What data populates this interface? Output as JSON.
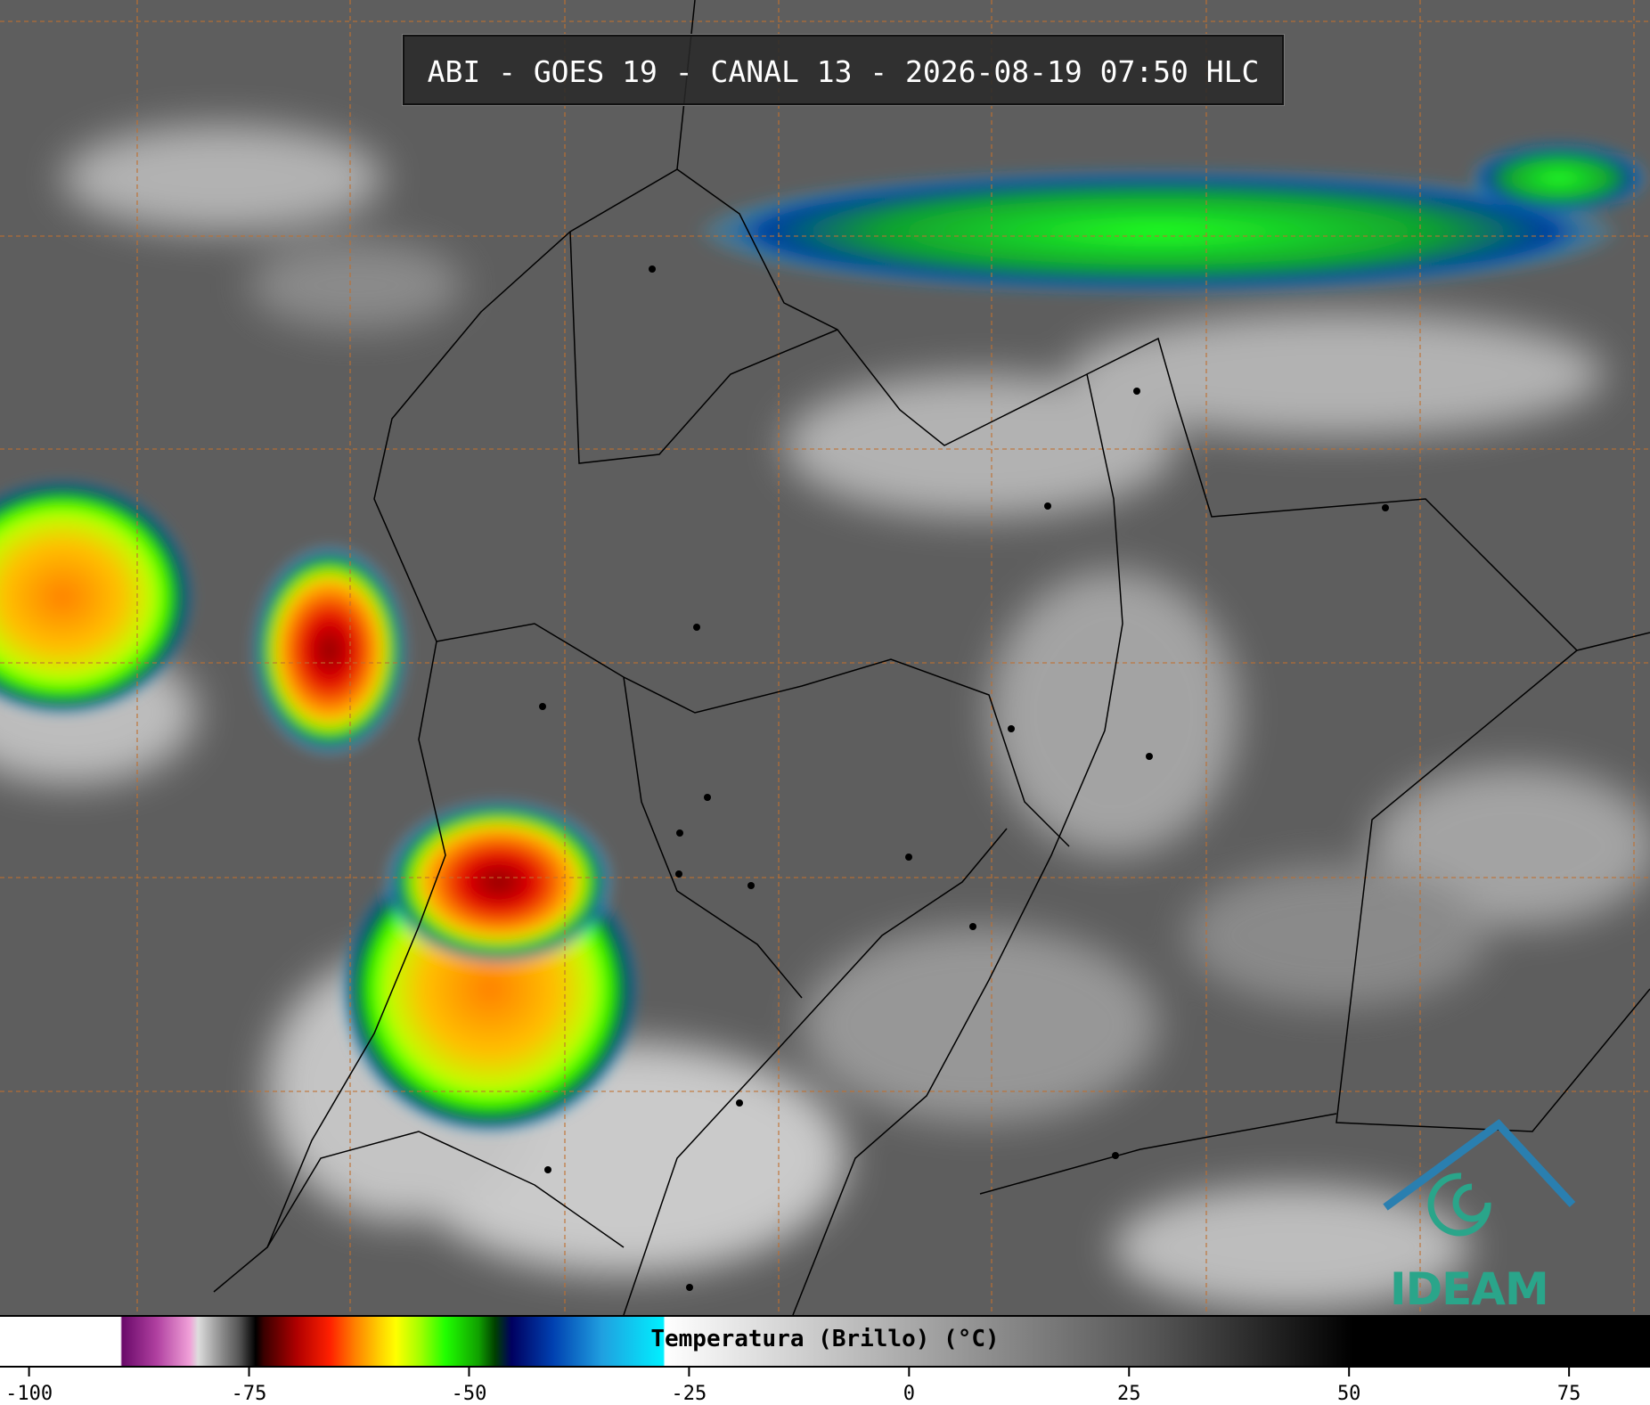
{
  "header": {
    "title": "ABI - GOES 19 - CANAL 13 - 2026-08-19 07:50 HLC"
  },
  "colorbar": {
    "label": "Temperatura (Brillo) (°C)",
    "xlim": [
      -103.3,
      84.2
    ],
    "xticks": [
      -100,
      -75,
      -50,
      -25,
      0,
      25,
      50,
      75
    ]
  },
  "logo": {
    "text": "IDEAM"
  }
}
